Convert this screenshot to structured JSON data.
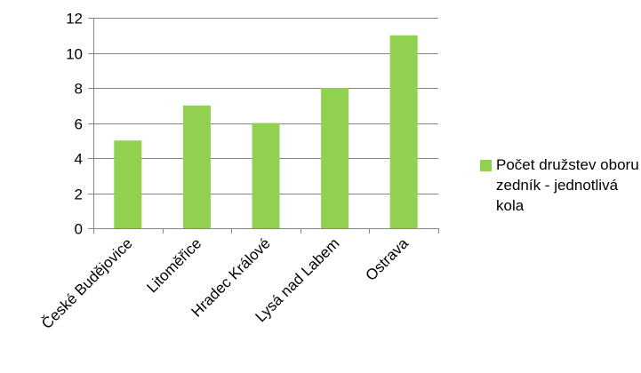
{
  "chart_data": {
    "type": "bar",
    "title": "",
    "xlabel": "",
    "ylabel": "",
    "categories": [
      "České Budějovice",
      "Litoměřice",
      "Hradec Králové",
      "Lysá nad Labem",
      "Ostrava"
    ],
    "series": [
      {
        "name": "Počet družstev oboru zedník - jednotlivá kola",
        "values": [
          5,
          7,
          6,
          8,
          11
        ],
        "color": "#92d050"
      }
    ],
    "ylim": [
      0,
      12
    ],
    "yticks": [
      0,
      2,
      4,
      6,
      8,
      10,
      12
    ],
    "grid": true,
    "legend_position": "right"
  }
}
